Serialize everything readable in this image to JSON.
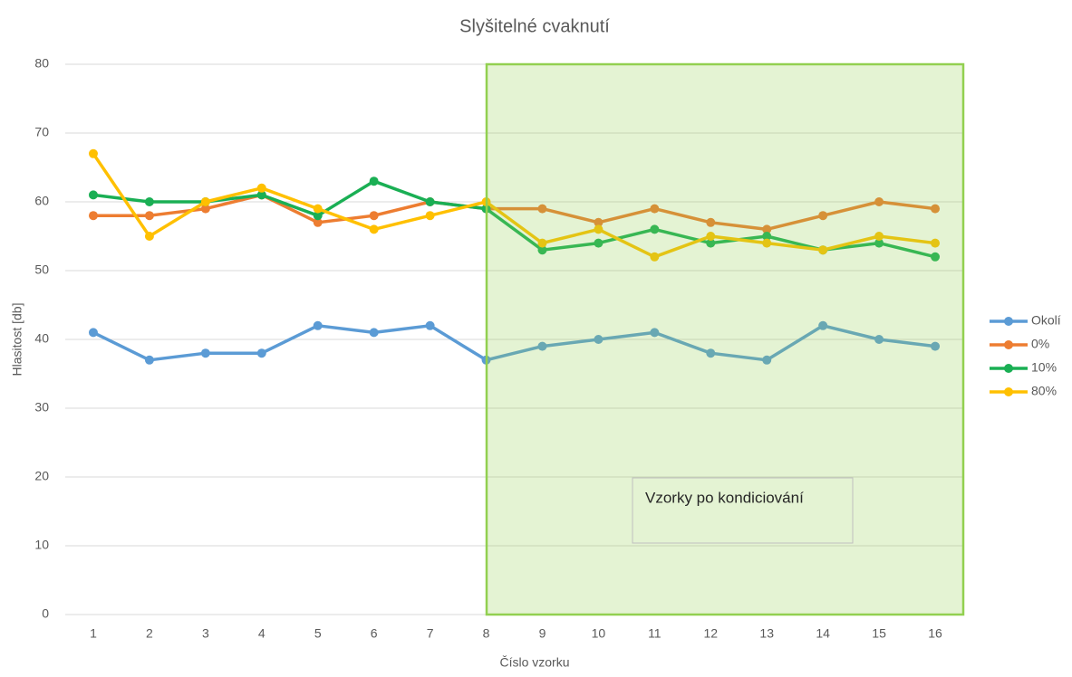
{
  "chart_data": {
    "type": "line",
    "title": "Slyšitelné cvaknutí",
    "x_label": "Číslo vzorku",
    "y_label": "Hlasitost [db]",
    "annotation": "Vzorky po kondiciování",
    "categories": [
      "1",
      "2",
      "3",
      "4",
      "5",
      "6",
      "7",
      "8",
      "9",
      "10",
      "11",
      "12",
      "13",
      "14",
      "15",
      "16"
    ],
    "series": [
      {
        "name": "Okolí",
        "color": "#5b9bd5",
        "values": [
          41,
          37,
          38,
          38,
          42,
          41,
          42,
          37,
          39,
          40,
          41,
          38,
          37,
          42,
          40,
          39
        ]
      },
      {
        "name": "0%",
        "color": "#ed7d31",
        "values": [
          58,
          58,
          59,
          61,
          57,
          58,
          60,
          59,
          59,
          57,
          59,
          57,
          56,
          58,
          60,
          59
        ]
      },
      {
        "name": "10%",
        "color": "#1aaf54",
        "values": [
          61,
          60,
          60,
          61,
          58,
          63,
          60,
          59,
          53,
          54,
          56,
          54,
          55,
          53,
          54,
          52
        ]
      },
      {
        "name": "80%",
        "color": "#ffc000",
        "values": [
          67,
          55,
          60,
          62,
          59,
          56,
          58,
          60,
          54,
          56,
          52,
          55,
          54,
          53,
          55,
          54
        ]
      }
    ],
    "ylim": [
      0,
      80
    ],
    "yticks": [
      0,
      10,
      20,
      30,
      40,
      50,
      60,
      70,
      80
    ],
    "grid": true,
    "legend": "right"
  }
}
